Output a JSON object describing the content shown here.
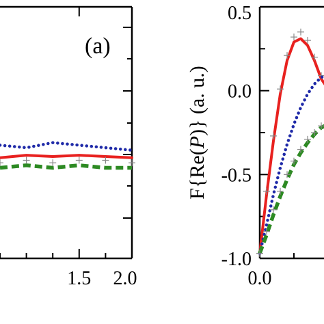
{
  "chart_data": [
    {
      "type": "line",
      "panel_label": "(a)",
      "xlim": [
        0.75,
        2.0
      ],
      "x_ticks": [
        "1.5",
        "2.0"
      ],
      "series": [
        {
          "style": "solid",
          "color": "#e8211f",
          "x": [
            0.75,
            1.0,
            1.25,
            1.5,
            1.75,
            2.0
          ],
          "y": [
            0.4,
            0.41,
            0.405,
            0.41,
            0.405,
            0.4
          ]
        },
        {
          "style": "dotted",
          "color": "#1f2aa8",
          "x": [
            0.75,
            1.0,
            1.25,
            1.5,
            1.75,
            2.0
          ],
          "y": [
            0.45,
            0.44,
            0.46,
            0.45,
            0.44,
            0.43
          ]
        },
        {
          "style": "dashed",
          "color": "#2d8a23",
          "x": [
            0.75,
            1.0,
            1.25,
            1.5,
            1.75,
            2.0
          ],
          "y": [
            0.36,
            0.37,
            0.36,
            0.37,
            0.36,
            0.36
          ]
        },
        {
          "style": "markers",
          "marker": "+",
          "color": "#888888",
          "x": [
            0.75,
            1.0,
            1.25,
            1.5,
            1.75,
            2.0
          ],
          "y": [
            0.38,
            0.39,
            0.38,
            0.39,
            0.39,
            0.38
          ]
        }
      ]
    },
    {
      "type": "line",
      "ylabel_prefix": "F{Re(",
      "ylabel_italic": "P",
      "ylabel_suffix": ")} (a. u.)",
      "xlim": [
        0.0,
        1.0
      ],
      "ylim": [
        -1.0,
        0.5
      ],
      "x_ticks": [
        "0.0"
      ],
      "y_ticks": [
        "0.5",
        "0.0",
        "-0.5",
        "-1.0"
      ],
      "series": [
        {
          "style": "solid",
          "color": "#e8211f",
          "x": [
            0.0,
            0.05,
            0.1,
            0.15,
            0.2,
            0.25,
            0.3,
            0.35,
            0.4,
            0.45,
            0.5
          ],
          "y": [
            -0.97,
            -0.62,
            -0.3,
            -0.02,
            0.18,
            0.29,
            0.31,
            0.27,
            0.18,
            0.07,
            0.01
          ]
        },
        {
          "style": "markers",
          "marker": "+",
          "color": "#888888",
          "x": [
            0.0,
            0.05,
            0.1,
            0.15,
            0.2,
            0.25,
            0.3,
            0.35,
            0.4,
            0.45,
            0.5
          ],
          "y": [
            -0.97,
            -0.6,
            -0.27,
            0.01,
            0.21,
            0.32,
            0.35,
            0.3,
            0.2,
            0.09,
            0.02
          ]
        },
        {
          "style": "dotted",
          "color": "#1f2aa8",
          "x": [
            0.0,
            0.05,
            0.1,
            0.15,
            0.2,
            0.25,
            0.3,
            0.35,
            0.4,
            0.45,
            0.5
          ],
          "y": [
            -0.97,
            -0.8,
            -0.62,
            -0.46,
            -0.32,
            -0.2,
            -0.1,
            -0.02,
            0.04,
            0.08,
            0.09
          ]
        },
        {
          "style": "dashed",
          "color": "#2d8a23",
          "x": [
            0.0,
            0.05,
            0.1,
            0.15,
            0.2,
            0.25,
            0.3,
            0.35,
            0.4,
            0.45,
            0.5
          ],
          "y": [
            -0.97,
            -0.86,
            -0.74,
            -0.63,
            -0.53,
            -0.44,
            -0.37,
            -0.31,
            -0.26,
            -0.22,
            -0.2
          ]
        },
        {
          "style": "markers",
          "marker": "+",
          "color": "#888888",
          "x": [
            0.0,
            0.05,
            0.1,
            0.15,
            0.2,
            0.25,
            0.3,
            0.35,
            0.4,
            0.45,
            0.5
          ],
          "y": [
            -0.97,
            -0.84,
            -0.71,
            -0.6,
            -0.5,
            -0.42,
            -0.35,
            -0.29,
            -0.25,
            -0.21,
            -0.19
          ]
        }
      ]
    }
  ]
}
